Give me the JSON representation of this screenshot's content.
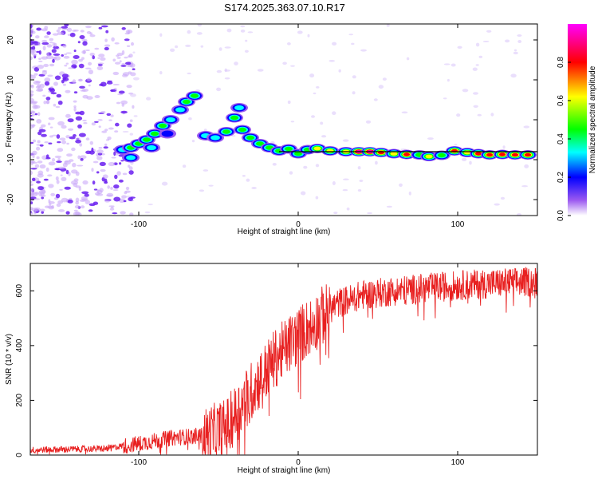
{
  "title": "S174.2025.363.07.10.R17",
  "colors": {
    "snr_line": "#e82020",
    "ridge_line": "#000000",
    "axis": "#000000",
    "noise": "#7a3ff0"
  },
  "chart_data": [
    {
      "type": "heatmap",
      "name": "spectrogram",
      "xlabel": "Height of straight line (km)",
      "ylabel": "Frequency (Hz)",
      "xlim": [
        -168,
        150
      ],
      "ylim": [
        -24,
        24
      ],
      "xticks": [
        -100,
        0,
        100
      ],
      "yticks": [
        -20,
        -10,
        0,
        10,
        20
      ],
      "colorbar": {
        "label": "Normalized spectral amplitude",
        "range": [
          0,
          1
        ],
        "ticks": [
          0.0,
          0.2,
          0.4,
          0.6,
          0.8
        ],
        "colors": [
          "#ffffff",
          "#8a2be2",
          "#0000ff",
          "#00ffff",
          "#00ff00",
          "#ffff00",
          "#ff0000",
          "#ff00ff"
        ]
      },
      "ridge_line": {
        "x": [
          -12,
          150
        ],
        "y": [
          -8,
          -8
        ]
      },
      "blobs": [
        {
          "x": -110,
          "y": -7.5,
          "a": 0.4
        },
        {
          "x": -105,
          "y": -7.0,
          "a": 0.5
        },
        {
          "x": -100,
          "y": -6.0,
          "a": 0.5
        },
        {
          "x": -95,
          "y": -5.0,
          "a": 0.45
        },
        {
          "x": -90,
          "y": -3.5,
          "a": 0.5
        },
        {
          "x": -85,
          "y": -1.5,
          "a": 0.45
        },
        {
          "x": -80,
          "y": 0.0,
          "a": 0.4
        },
        {
          "x": -74,
          "y": 2.5,
          "a": 0.4
        },
        {
          "x": -70,
          "y": 4.5,
          "a": 0.45
        },
        {
          "x": -65,
          "y": 6.0,
          "a": 0.5
        },
        {
          "x": -105,
          "y": -9.5,
          "a": 0.35
        },
        {
          "x": -92,
          "y": -7.0,
          "a": 0.35
        },
        {
          "x": -82,
          "y": -3.5,
          "a": 0.3
        },
        {
          "x": -58,
          "y": -4.0,
          "a": 0.35
        },
        {
          "x": -52,
          "y": -4.5,
          "a": 0.4
        },
        {
          "x": -45,
          "y": -3.0,
          "a": 0.45
        },
        {
          "x": -40,
          "y": 0.5,
          "a": 0.45
        },
        {
          "x": -37,
          "y": 3.0,
          "a": 0.35
        },
        {
          "x": -35,
          "y": -2.5,
          "a": 0.5
        },
        {
          "x": -30,
          "y": -4.5,
          "a": 0.5
        },
        {
          "x": -24,
          "y": -6.0,
          "a": 0.5
        },
        {
          "x": -18,
          "y": -7.0,
          "a": 0.5
        },
        {
          "x": -12,
          "y": -7.8,
          "a": 0.55
        },
        {
          "x": -6,
          "y": -7.3,
          "a": 0.45
        },
        {
          "x": 0,
          "y": -8.5,
          "a": 0.45
        },
        {
          "x": 6,
          "y": -7.5,
          "a": 0.55
        },
        {
          "x": 12,
          "y": -7.2,
          "a": 0.65
        },
        {
          "x": 20,
          "y": -7.8,
          "a": 0.6
        },
        {
          "x": 30,
          "y": -8.0,
          "a": 0.75
        },
        {
          "x": 38,
          "y": -8.0,
          "a": 0.95
        },
        {
          "x": 45,
          "y": -8.0,
          "a": 0.95
        },
        {
          "x": 52,
          "y": -8.2,
          "a": 0.8
        },
        {
          "x": 60,
          "y": -8.5,
          "a": 0.65
        },
        {
          "x": 68,
          "y": -8.7,
          "a": 0.8
        },
        {
          "x": 76,
          "y": -8.8,
          "a": 0.55
        },
        {
          "x": 82,
          "y": -9.2,
          "a": 0.7
        },
        {
          "x": 90,
          "y": -8.9,
          "a": 0.55
        },
        {
          "x": 98,
          "y": -7.8,
          "a": 0.8
        },
        {
          "x": 106,
          "y": -8.2,
          "a": 0.7
        },
        {
          "x": 113,
          "y": -8.5,
          "a": 0.85
        },
        {
          "x": 120,
          "y": -8.8,
          "a": 0.8
        },
        {
          "x": 128,
          "y": -8.7,
          "a": 0.85
        },
        {
          "x": 136,
          "y": -8.8,
          "a": 0.85
        },
        {
          "x": 144,
          "y": -8.8,
          "a": 0.9
        }
      ]
    },
    {
      "type": "line",
      "name": "snr",
      "xlabel": "Height of straight line (km)",
      "ylabel": "SNR (10 * v/v)",
      "xlim": [
        -168,
        150
      ],
      "ylim": [
        0,
        700
      ],
      "xticks": [
        -100,
        0,
        100
      ],
      "yticks": [
        0,
        200,
        400,
        600
      ],
      "envelope": {
        "x": [
          -168,
          -120,
          -100,
          -80,
          -60,
          -45,
          -35,
          -25,
          -15,
          -5,
          5,
          15,
          25,
          40,
          60,
          80,
          100,
          120,
          150
        ],
        "y": [
          20,
          25,
          45,
          65,
          75,
          110,
          200,
          280,
          360,
          420,
          470,
          520,
          560,
          590,
          605,
          615,
          625,
          632,
          640
        ]
      }
    }
  ]
}
